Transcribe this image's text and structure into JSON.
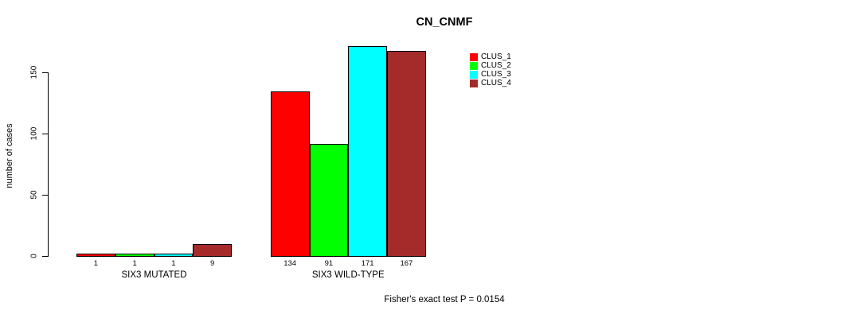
{
  "chart_data": {
    "type": "bar",
    "title": "CN_CNMF",
    "xlabel": "",
    "ylabel": "number of cases",
    "ylim": [
      0,
      150
    ],
    "yticks": [
      0,
      50,
      100,
      150
    ],
    "grid": false,
    "legend_position": "top-right",
    "legend": [
      "CLUS_1",
      "CLUS_2",
      "CLUS_3",
      "CLUS_4"
    ],
    "legend_colors": [
      "#FF0000",
      "#00FF00",
      "#00FFFF",
      "#A52A2A"
    ],
    "bar_border_color": "#000000",
    "groups": [
      {
        "label": "SIX3 MUTATED",
        "values": [
          1,
          1,
          1,
          9
        ]
      },
      {
        "label": "SIX3 WILD-TYPE",
        "values": [
          134,
          91,
          171,
          167
        ]
      }
    ],
    "annotation": "Fisher's exact test P = 0.0154"
  }
}
